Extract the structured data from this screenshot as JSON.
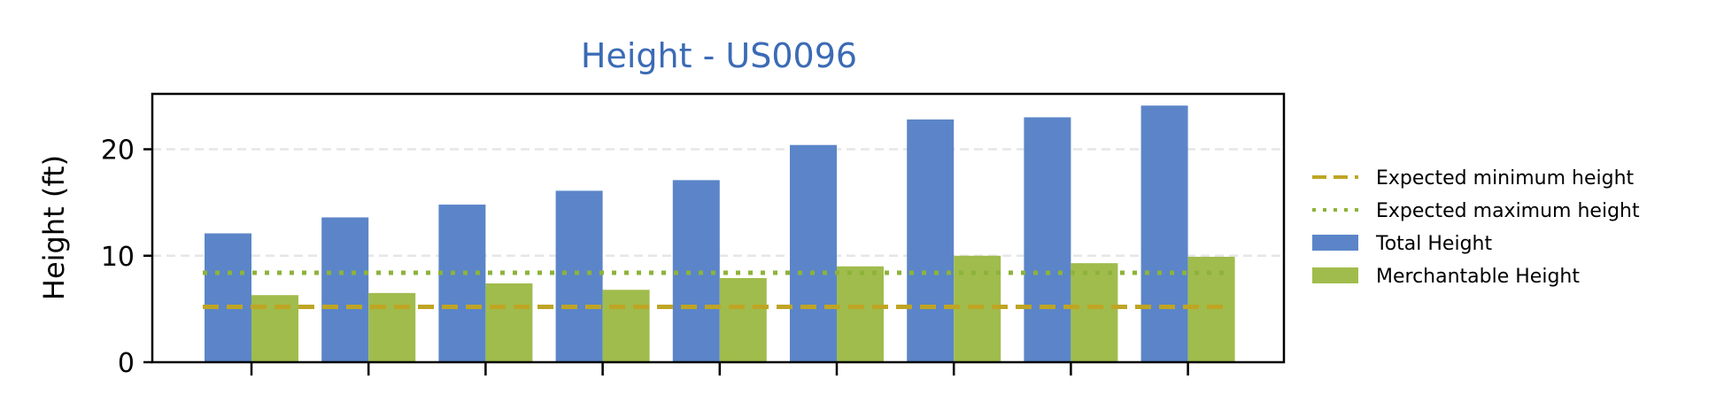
{
  "chart_data": {
    "type": "bar",
    "title": "Height - US0096",
    "xlabel": "",
    "ylabel": "Height (ft)",
    "ylim": [
      0,
      25.2
    ],
    "yticks": [
      0,
      10,
      20
    ],
    "categories": [
      "",
      "",
      "",
      "",
      "",
      "",
      "",
      "",
      ""
    ],
    "series": [
      {
        "name": "Total Height",
        "color": "#5b85c8",
        "values": [
          12.1,
          13.6,
          14.8,
          16.1,
          17.1,
          20.4,
          22.8,
          23.0,
          24.1
        ]
      },
      {
        "name": "Merchantable Height",
        "color": "#a0bc4c",
        "values": [
          6.3,
          6.5,
          7.4,
          6.8,
          7.9,
          9.0,
          10.0,
          9.3,
          9.9
        ]
      }
    ],
    "reference_lines": [
      {
        "name": "Expected minimum height",
        "value": 5.2,
        "style": "dashed",
        "color": "#bfa524"
      },
      {
        "name": "Expected maximum height",
        "value": 8.4,
        "style": "dotted",
        "color": "#8db33a"
      }
    ],
    "grid": "horizontal",
    "legend_position": "right",
    "title_color": "#3b6bb5"
  }
}
